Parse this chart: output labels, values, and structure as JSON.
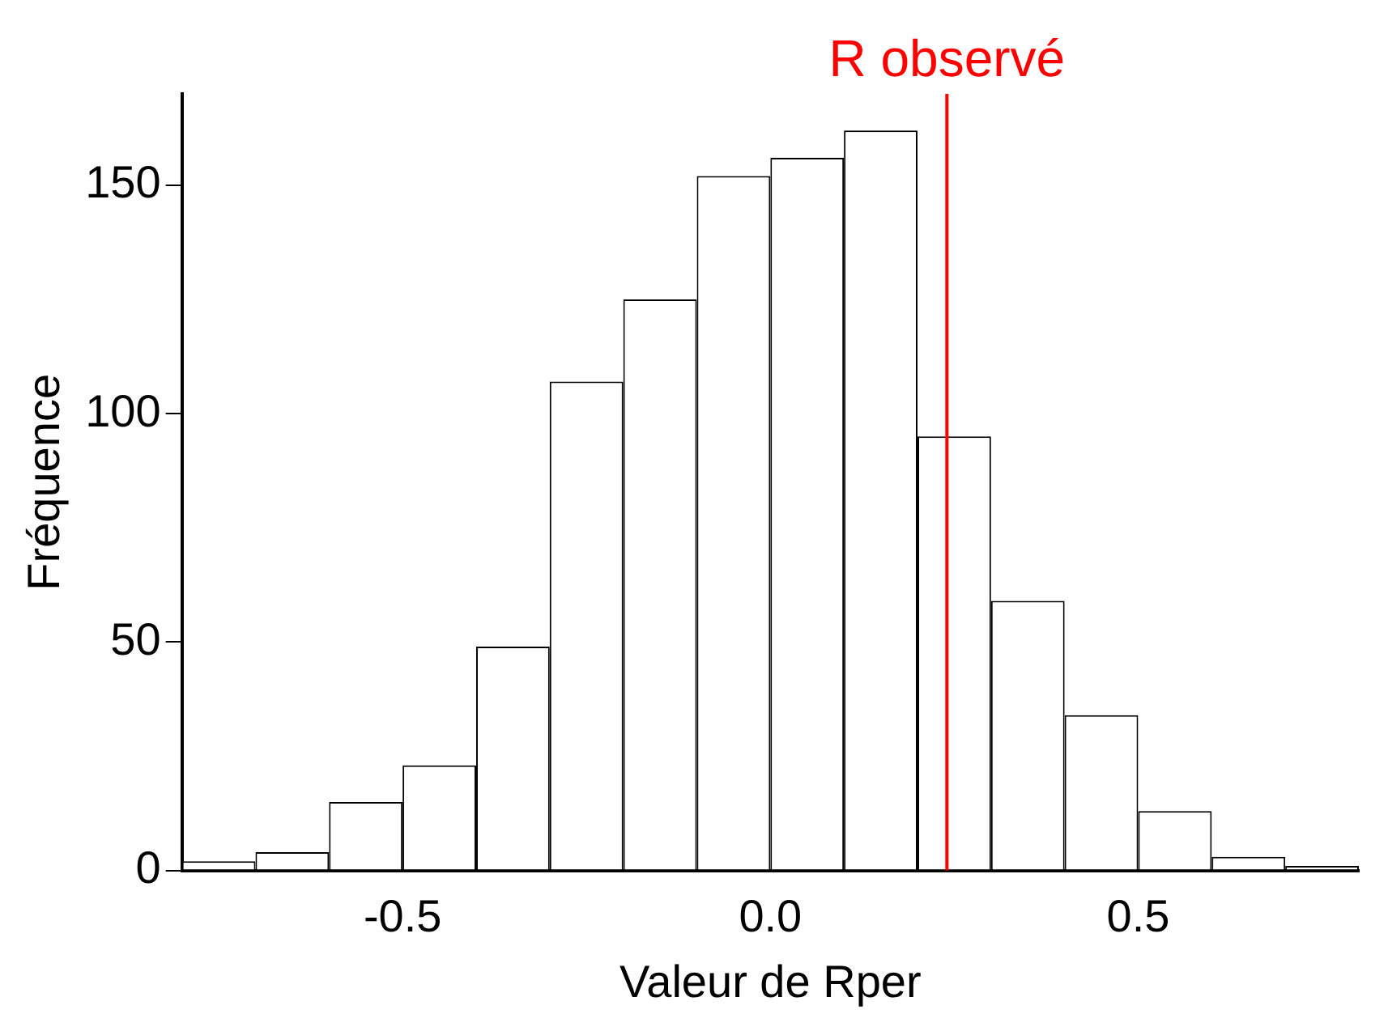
{
  "chart_data": {
    "type": "histogram",
    "xlabel": "Valeur de Rper",
    "ylabel": "Fréquence",
    "bins": [
      -0.8,
      -0.7,
      -0.6,
      -0.5,
      -0.4,
      -0.3,
      -0.2,
      -0.1,
      0.0,
      0.1,
      0.2,
      0.3,
      0.4,
      0.5,
      0.6,
      0.7,
      0.8
    ],
    "values": [
      2,
      4,
      15,
      23,
      49,
      107,
      125,
      152,
      156,
      162,
      95,
      59,
      34,
      13,
      3,
      1
    ],
    "color": "#ffffff",
    "xlim": [
      -0.8,
      0.8
    ],
    "xticks": [
      {
        "value": -0.5,
        "label": "-0.5"
      },
      {
        "value": 0,
        "label": "0.0"
      },
      {
        "value": 0.5,
        "label": "0.5"
      }
    ],
    "ylim": [
      0,
      170
    ],
    "yticks": [
      0,
      50,
      100,
      150
    ],
    "grid": false,
    "ref_lines": [
      {
        "axis": "x",
        "value": 0.24,
        "label": "R observé",
        "color": "#ff0000"
      }
    ]
  }
}
